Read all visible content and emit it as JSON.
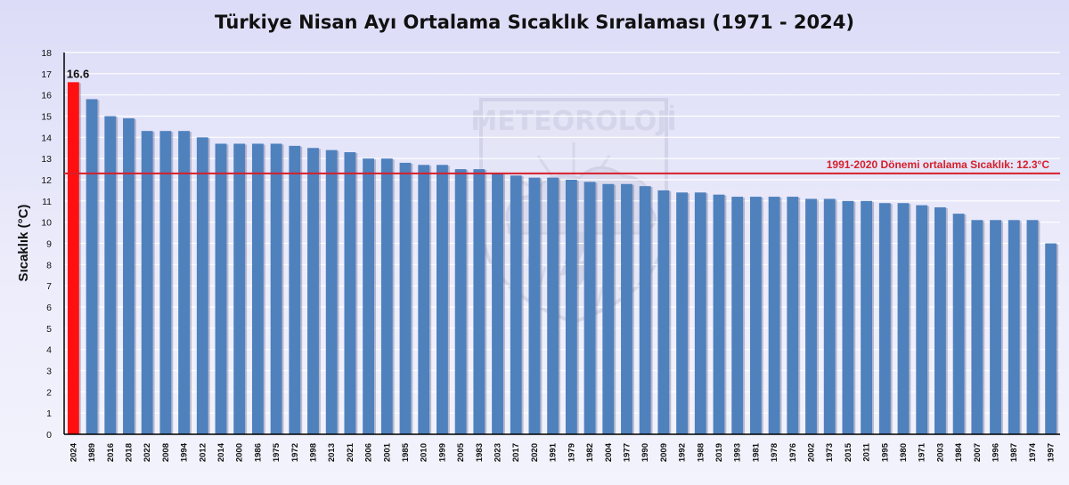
{
  "chart_data": {
    "type": "bar",
    "title": "Türkiye Nisan Ayı Ortalama Sıcaklık Sıralaması (1971 - 2024)",
    "ylabel": "Sıcaklık (°C)",
    "xlabel": "",
    "ylim": [
      0,
      18
    ],
    "yticks": [
      "0",
      "1",
      "2",
      "3",
      "4",
      "5",
      "6",
      "7",
      "8",
      "9",
      "10",
      "11",
      "12",
      "13",
      "14",
      "15",
      "16",
      "17",
      "18"
    ],
    "grid": true,
    "categories": [
      "2024",
      "1989",
      "2016",
      "2018",
      "2022",
      "2008",
      "1994",
      "2012",
      "2014",
      "2000",
      "1986",
      "1975",
      "1972",
      "1998",
      "2013",
      "2021",
      "2006",
      "2001",
      "1985",
      "2010",
      "1999",
      "2005",
      "1983",
      "2023",
      "2017",
      "2020",
      "1991",
      "1979",
      "1982",
      "2004",
      "1977",
      "1990",
      "2009",
      "1992",
      "1988",
      "2019",
      "1993",
      "1981",
      "1978",
      "1976",
      "2002",
      "1973",
      "2015",
      "2011",
      "1995",
      "1980",
      "1971",
      "2003",
      "1984",
      "2007",
      "1996",
      "1987",
      "1974",
      "1997"
    ],
    "values": [
      16.6,
      15.8,
      15.0,
      14.9,
      14.3,
      14.3,
      14.3,
      14.0,
      13.7,
      13.7,
      13.7,
      13.7,
      13.6,
      13.5,
      13.4,
      13.3,
      13.0,
      13.0,
      12.8,
      12.7,
      12.7,
      12.5,
      12.5,
      12.3,
      12.2,
      12.1,
      12.1,
      12.0,
      11.9,
      11.8,
      11.8,
      11.7,
      11.5,
      11.4,
      11.4,
      11.3,
      11.2,
      11.2,
      11.2,
      11.2,
      11.1,
      11.1,
      11.0,
      11.0,
      10.9,
      10.9,
      10.8,
      10.7,
      10.4,
      10.1,
      10.1,
      10.1,
      10.1,
      9.0
    ],
    "highlight_index": 0,
    "highlight_label": "16.6",
    "reference_line": {
      "value": 12.3,
      "label": "1991-2020 Dönemi ortalama Sıcaklık: 12.3°C"
    },
    "colors": {
      "bar": "#4f81bd",
      "highlight": "#ff1010",
      "reference": "#d61f2a",
      "grid": "#ffffff"
    }
  },
  "watermark": {
    "text": "METEOROLOJİ",
    "icon": "sun-cloud-rain-lightning-icon"
  }
}
